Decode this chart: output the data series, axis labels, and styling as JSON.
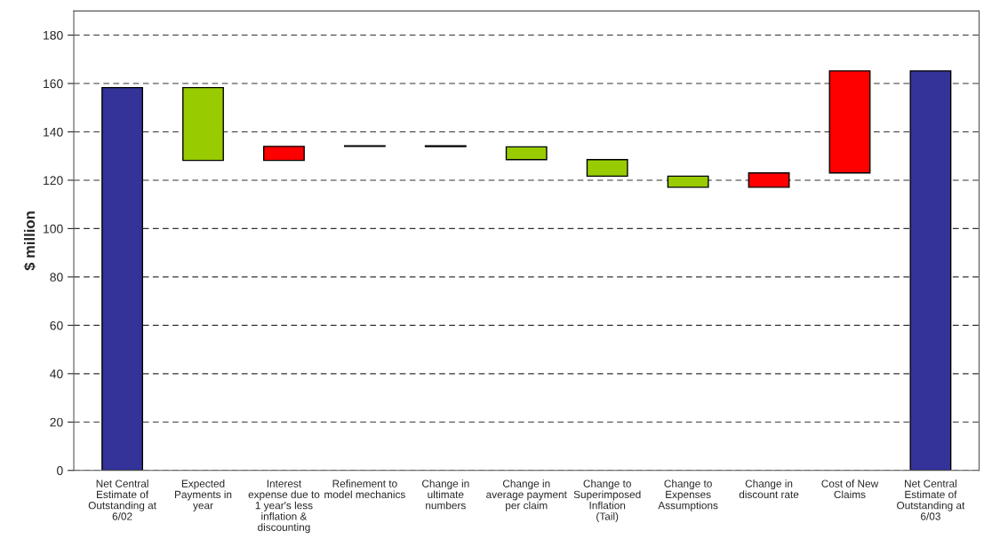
{
  "chart_data": {
    "type": "bar",
    "ylabel": "$ million",
    "categories": [
      "Net Central Estimate of Outstanding at 6/02",
      "Expected Payments in year",
      "Interest expense due to 1 year's less inflation & discounting",
      "Refinement to model mechanics",
      "Change in ultimate numbers",
      "Change in average payment per claim",
      "Change to Superimposed Inflation (Tail)",
      "Change to Expenses Assumptions",
      "Change in discount rate",
      "Cost of New Claims",
      "Net Central Estimate of Outstanding at 6/03"
    ],
    "base": [
      0,
      128.2,
      128.2,
      134.0,
      133.9,
      128.5,
      121.7,
      117.1,
      117.1,
      123.0,
      0
    ],
    "values": [
      158.3,
      30.1,
      5.8,
      0.2,
      0.3,
      5.3,
      6.8,
      4.6,
      5.9,
      42.2,
      165.2
    ],
    "colors": [
      "#333399",
      "#99cc00",
      "#ff0000",
      "#99cc00",
      "#99cc00",
      "#99cc00",
      "#99cc00",
      "#99cc00",
      "#ff0000",
      "#ff0000",
      "#333399"
    ],
    "ylim": [
      0,
      190
    ],
    "yticks": [
      0,
      20,
      40,
      60,
      80,
      100,
      120,
      140,
      160,
      180
    ],
    "grid": "y",
    "line_style": "dashed"
  }
}
